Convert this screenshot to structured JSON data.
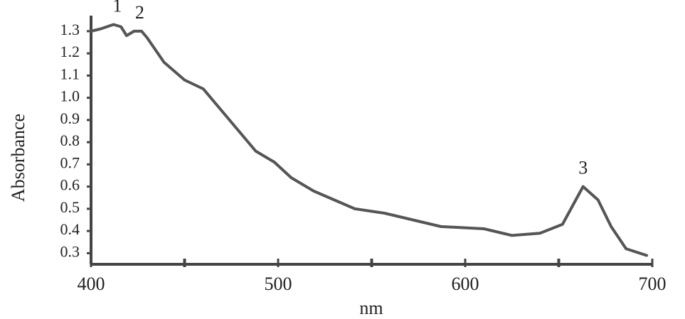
{
  "chart_data": {
    "type": "line",
    "x_label": "nm",
    "y_label": "Absorbance",
    "xlim": [
      400,
      700
    ],
    "ylim": [
      0.25,
      1.37
    ],
    "xticks": [
      400,
      500,
      600,
      700
    ],
    "xminorticks": [
      450,
      550,
      650
    ],
    "yticks": [
      0.3,
      0.4,
      0.5,
      0.6,
      0.7,
      0.8,
      0.9,
      {
        "value": 1,
        "label": "1.0"
      },
      1.1,
      1.2,
      1.3
    ],
    "grid": false,
    "series": [
      {
        "color": "#555555",
        "x": [
          400,
          405,
          412,
          416,
          419,
          423,
          427,
          430,
          439,
          450,
          460,
          469,
          479,
          488,
          498,
          507,
          519,
          530,
          541,
          557,
          572,
          587,
          610,
          625,
          640,
          652,
          663,
          671,
          678,
          686,
          697
        ],
        "values": [
          1.3,
          1.31,
          1.33,
          1.32,
          1.28,
          1.3,
          1.3,
          1.27,
          1.16,
          1.08,
          1.04,
          0.95,
          0.85,
          0.76,
          0.71,
          0.64,
          0.58,
          0.54,
          0.5,
          0.48,
          0.45,
          0.42,
          0.41,
          0.38,
          0.39,
          0.43,
          0.6,
          0.54,
          0.42,
          0.32,
          0.29
        ]
      }
    ],
    "annotations": [
      {
        "text": "1",
        "x": 414,
        "y": 1.33
      },
      {
        "text": "2",
        "x": 426,
        "y": 1.3
      },
      {
        "text": "3",
        "x": 663,
        "y": 0.6
      }
    ]
  }
}
